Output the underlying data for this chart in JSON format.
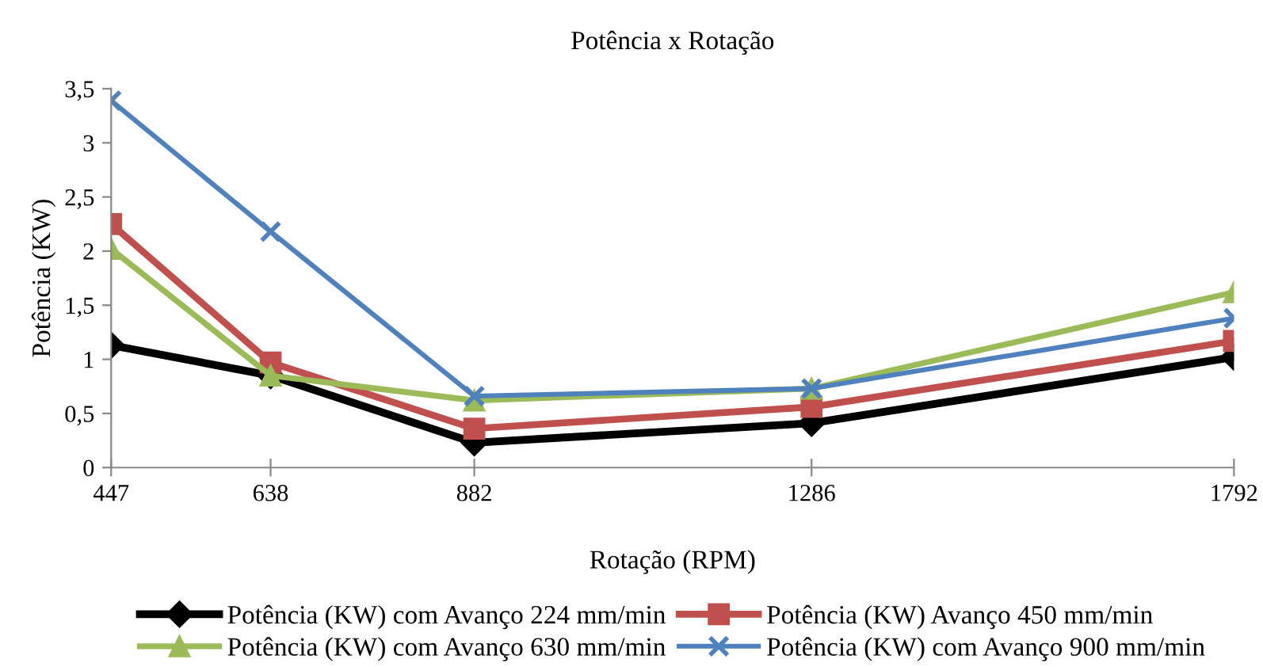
{
  "chart_data": {
    "type": "line",
    "title": "Potência x Rotação",
    "xlabel": "Rotação (RPM)",
    "ylabel": "Potência (KW)",
    "x": [
      447,
      638,
      882,
      1286,
      1792
    ],
    "series": [
      {
        "name": "Potência (KW) com Avanço 224 mm/min",
        "color": "#000000",
        "marker": "diamond",
        "values": [
          1.13,
          0.85,
          0.23,
          0.41,
          1.02
        ]
      },
      {
        "name": "Potência (KW) Avanço 450 mm/min",
        "color": "#c0504d",
        "marker": "square",
        "values": [
          2.25,
          0.97,
          0.36,
          0.56,
          1.17
        ]
      },
      {
        "name": "Potência (KW) com Avanço 630 mm/min",
        "color": "#9bbb59",
        "marker": "triangle",
        "values": [
          2.02,
          0.85,
          0.62,
          0.73,
          1.62
        ]
      },
      {
        "name": "Potência (KW) com Avanço 900 mm/min",
        "color": "#4f81bd",
        "marker": "cross",
        "values": [
          3.39,
          2.18,
          0.66,
          0.73,
          1.38
        ]
      }
    ],
    "xlim": [
      447,
      1792
    ],
    "xticks": [
      447,
      638,
      882,
      1286,
      1792
    ],
    "ylim": [
      0,
      3.5
    ],
    "yticks": [
      0,
      {
        "value": 0.5,
        "label": "0,5"
      },
      1,
      {
        "value": 1.5,
        "label": "1,5"
      },
      2,
      {
        "value": 2.5,
        "label": "2,5"
      },
      3,
      {
        "value": 3.5,
        "label": "3,5"
      }
    ],
    "grid": false,
    "legend": "bottom",
    "line_style": "solid"
  }
}
